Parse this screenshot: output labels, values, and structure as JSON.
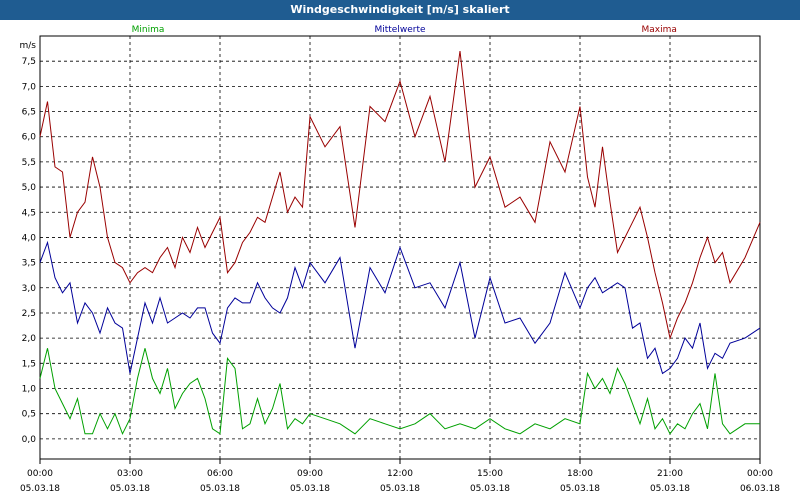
{
  "window": {
    "title": "Windgeschwindigkeit [m/s] skaliert"
  },
  "chart_data": {
    "type": "line",
    "title": "Windgeschwindigkeit [m/s] skaliert",
    "ylabel": "m/s",
    "ylim": [
      -0.4,
      8.0
    ],
    "xlim": [
      0,
      24
    ],
    "yticks": [
      "7,5",
      "7,0",
      "6,5",
      "6,0",
      "5,5",
      "5,0",
      "4,5",
      "4,0",
      "3,5",
      "3,0",
      "2,5",
      "2,0",
      "1,5",
      "1,0",
      "0,5",
      "0,0"
    ],
    "xticks": [
      {
        "time": "00:00",
        "date": "05.03.18"
      },
      {
        "time": "03:00",
        "date": "05.03.18"
      },
      {
        "time": "06:00",
        "date": "05.03.18"
      },
      {
        "time": "09:00",
        "date": "05.03.18"
      },
      {
        "time": "12:00",
        "date": "05.03.18"
      },
      {
        "time": "15:00",
        "date": "05.03.18"
      },
      {
        "time": "18:00",
        "date": "05.03.18"
      },
      {
        "time": "21:00",
        "date": "05.03.18"
      },
      {
        "time": "00:00",
        "date": "06.03.18"
      }
    ],
    "grid": true,
    "series": [
      {
        "name": "Minima",
        "color": "#00a000",
        "x": [
          0,
          0.25,
          0.5,
          0.75,
          1,
          1.25,
          1.5,
          1.75,
          2,
          2.25,
          2.5,
          2.75,
          3,
          3.25,
          3.5,
          3.75,
          4,
          4.25,
          4.5,
          4.75,
          5,
          5.25,
          5.5,
          5.75,
          6,
          6.25,
          6.5,
          6.75,
          7,
          7.25,
          7.5,
          7.75,
          8,
          8.25,
          8.5,
          8.75,
          9,
          9.5,
          10,
          10.5,
          11,
          11.5,
          12,
          12.5,
          13,
          13.5,
          14,
          14.5,
          15,
          15.5,
          16,
          16.5,
          17,
          17.5,
          18,
          18.25,
          18.5,
          18.75,
          19,
          19.25,
          19.5,
          19.75,
          20,
          20.25,
          20.5,
          20.75,
          21,
          21.25,
          21.5,
          21.75,
          22,
          22.25,
          22.5,
          22.75,
          23,
          23.5,
          24
        ],
        "values": [
          1.2,
          1.8,
          1.0,
          0.7,
          0.4,
          0.8,
          0.1,
          0.1,
          0.5,
          0.2,
          0.5,
          0.1,
          0.4,
          1.2,
          1.8,
          1.2,
          0.9,
          1.4,
          0.6,
          0.9,
          1.1,
          1.2,
          0.8,
          0.2,
          0.1,
          1.6,
          1.4,
          0.2,
          0.3,
          0.8,
          0.3,
          0.6,
          1.1,
          0.2,
          0.4,
          0.3,
          0.5,
          0.4,
          0.3,
          0.1,
          0.4,
          0.3,
          0.2,
          0.3,
          0.5,
          0.2,
          0.3,
          0.2,
          0.4,
          0.2,
          0.1,
          0.3,
          0.2,
          0.4,
          0.3,
          1.3,
          1.0,
          1.2,
          0.9,
          1.4,
          1.1,
          0.7,
          0.3,
          0.8,
          0.2,
          0.4,
          0.1,
          0.3,
          0.2,
          0.5,
          0.7,
          0.2,
          1.3,
          0.3,
          0.1,
          0.3,
          0.3
        ]
      },
      {
        "name": "Mittelwerte",
        "color": "#000099",
        "x": [
          0,
          0.25,
          0.5,
          0.75,
          1,
          1.25,
          1.5,
          1.75,
          2,
          2.25,
          2.5,
          2.75,
          3,
          3.25,
          3.5,
          3.75,
          4,
          4.25,
          4.5,
          4.75,
          5,
          5.25,
          5.5,
          5.75,
          6,
          6.25,
          6.5,
          6.75,
          7,
          7.25,
          7.5,
          7.75,
          8,
          8.25,
          8.5,
          8.75,
          9,
          9.5,
          10,
          10.5,
          11,
          11.5,
          12,
          12.5,
          13,
          13.5,
          14,
          14.5,
          15,
          15.5,
          16,
          16.5,
          17,
          17.5,
          18,
          18.25,
          18.5,
          18.75,
          19,
          19.25,
          19.5,
          19.75,
          20,
          20.25,
          20.5,
          20.75,
          21,
          21.25,
          21.5,
          21.75,
          22,
          22.25,
          22.5,
          22.75,
          23,
          23.5,
          24
        ],
        "values": [
          3.5,
          3.9,
          3.2,
          2.9,
          3.1,
          2.3,
          2.7,
          2.5,
          2.1,
          2.6,
          2.3,
          2.2,
          1.3,
          2.0,
          2.7,
          2.3,
          2.8,
          2.3,
          2.4,
          2.5,
          2.4,
          2.6,
          2.6,
          2.1,
          1.9,
          2.6,
          2.8,
          2.7,
          2.7,
          3.1,
          2.8,
          2.6,
          2.5,
          2.8,
          3.4,
          3.0,
          3.5,
          3.1,
          3.6,
          1.8,
          3.4,
          2.9,
          3.8,
          3.0,
          3.1,
          2.6,
          3.5,
          2.0,
          3.2,
          2.3,
          2.4,
          1.9,
          2.3,
          3.3,
          2.6,
          3.0,
          3.2,
          2.9,
          3.0,
          3.1,
          3.0,
          2.2,
          2.3,
          1.6,
          1.8,
          1.3,
          1.4,
          1.6,
          2.0,
          1.8,
          2.3,
          1.4,
          1.7,
          1.6,
          1.9,
          2.0,
          2.2
        ]
      },
      {
        "name": "Maxima",
        "color": "#990000",
        "x": [
          0,
          0.25,
          0.5,
          0.75,
          1,
          1.25,
          1.5,
          1.75,
          2,
          2.25,
          2.5,
          2.75,
          3,
          3.25,
          3.5,
          3.75,
          4,
          4.25,
          4.5,
          4.75,
          5,
          5.25,
          5.5,
          5.75,
          6,
          6.25,
          6.5,
          6.75,
          7,
          7.25,
          7.5,
          7.75,
          8,
          8.25,
          8.5,
          8.75,
          9,
          9.5,
          10,
          10.5,
          11,
          11.5,
          12,
          12.5,
          13,
          13.5,
          14,
          14.5,
          15,
          15.5,
          16,
          16.5,
          17,
          17.5,
          18,
          18.25,
          18.5,
          18.75,
          19,
          19.25,
          19.5,
          19.75,
          20,
          20.25,
          20.5,
          20.75,
          21,
          21.25,
          21.5,
          21.75,
          22,
          22.25,
          22.5,
          22.75,
          23,
          23.5,
          24
        ],
        "values": [
          6.0,
          6.7,
          5.4,
          5.3,
          4.0,
          4.5,
          4.7,
          5.6,
          5.0,
          4.0,
          3.5,
          3.4,
          3.1,
          3.3,
          3.4,
          3.3,
          3.6,
          3.8,
          3.4,
          4.0,
          3.7,
          4.2,
          3.8,
          4.1,
          4.4,
          3.3,
          3.5,
          3.9,
          4.1,
          4.4,
          4.3,
          4.8,
          5.3,
          4.5,
          4.8,
          4.6,
          6.4,
          5.8,
          6.2,
          4.2,
          6.6,
          6.3,
          7.1,
          6.0,
          6.8,
          5.5,
          7.7,
          5.0,
          5.6,
          4.6,
          4.8,
          4.3,
          5.9,
          5.3,
          6.6,
          5.2,
          4.6,
          5.8,
          4.7,
          3.7,
          4.0,
          4.3,
          4.6,
          4.0,
          3.3,
          2.7,
          2.0,
          2.4,
          2.7,
          3.1,
          3.6,
          4.0,
          3.5,
          3.7,
          3.1,
          3.6,
          4.3
        ]
      }
    ]
  }
}
